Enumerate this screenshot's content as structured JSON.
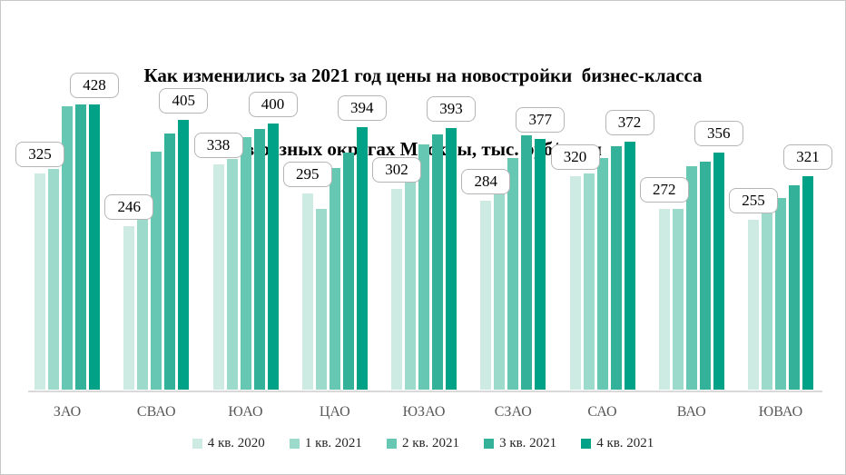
{
  "title": {
    "line1": "Как изменились за 2021 год цены на новостройки  бизнес-класса",
    "line2": "в разных округах Москвы, тыс. руб/кв. м"
  },
  "colors": {
    "series_palette": [
      "#CDEBE3",
      "#9CDACC",
      "#66C7B3",
      "#33B199",
      "#00A287"
    ],
    "axis_line": "#d9d9d9",
    "category_text": "#595959",
    "callout_border": "#b5b5b5",
    "title_text": "#000000",
    "canvas_border": "#c8c8c8"
  },
  "chart_data": {
    "type": "bar",
    "title": "Как изменились за 2021 год цены на новостройки бизнес-класса в разных округах Москвы, тыс. руб/кв. м",
    "xlabel": "",
    "ylabel": "тыс. руб/кв. м",
    "categories": [
      "ЗАО",
      "СВАО",
      "ЮАО",
      "ЦАО",
      "ЮЗАО",
      "СЗАО",
      "САО",
      "ВАО",
      "ЮВАО"
    ],
    "series": [
      {
        "name": "4 кв. 2020",
        "color": "#CDEBE3",
        "values": [
          325,
          246,
          338,
          295,
          302,
          284,
          320,
          272,
          255
        ]
      },
      {
        "name": "1 кв. 2021",
        "color": "#9CDACC",
        "values": [
          332,
          255,
          347,
          272,
          313,
          302,
          325,
          271,
          265
        ]
      },
      {
        "name": "2 кв. 2021",
        "color": "#66C7B3",
        "values": [
          425,
          357,
          379,
          333,
          368,
          348,
          348,
          335,
          288
        ]
      },
      {
        "name": "3 кв. 2021",
        "color": "#33B199",
        "values": [
          428,
          385,
          391,
          356,
          383,
          382,
          365,
          342,
          307
        ]
      },
      {
        "name": "4 кв. 2021",
        "color": "#00A287",
        "values": [
          428,
          405,
          400,
          394,
          393,
          377,
          372,
          356,
          321
        ]
      }
    ],
    "data_labels": {
      "labeled_series_indices": [
        0,
        4
      ],
      "first_bar_labels": [
        325,
        246,
        338,
        295,
        302,
        284,
        320,
        272,
        255
      ],
      "last_bar_labels": [
        428,
        405,
        400,
        394,
        393,
        377,
        372,
        356,
        321
      ]
    },
    "ylim": [
      0,
      450
    ],
    "grid": false,
    "axis_visible": "x-only",
    "legend_position": "bottom"
  }
}
